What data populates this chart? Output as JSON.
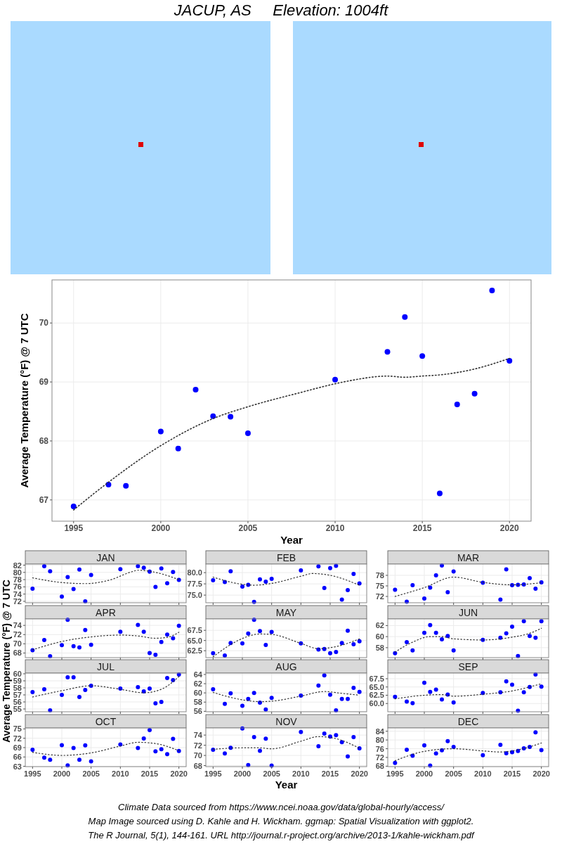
{
  "chart_data": [
    {
      "type": "scatter",
      "title": "JACUP, AS     Elevation: 1004ft",
      "xlabel": "Year",
      "ylabel": "Average Temperature (°F) @ 7 UTC",
      "x": [
        1995,
        1997,
        1998,
        2000,
        2001,
        2002,
        2003,
        2004,
        2005,
        2010,
        2013,
        2014,
        2015,
        2016,
        2017,
        2018,
        2019,
        2020
      ],
      "xlim": [
        1993.76,
        2021.24
      ],
      "xticks": [
        1995,
        2000,
        2005,
        2010,
        2015,
        2020
      ],
      "ylim": [
        66.64,
        70.73
      ],
      "yticks": [
        67,
        68,
        69,
        70
      ],
      "grid": true,
      "annotations": [
        "Climate Data sourced from https://www.ncei.noaa.gov/data/global-hourly/access/",
        "Map Image sourced using D. Kahle and H. Wickham. ggmap: Spatial Visualization with ggplot2.",
        "The R Journal, 5(1), 144-161. URL http://journal.r-project.org/archive/2013-1/kahle-wickham.pdf"
      ],
      "series": [
        {
          "type": "scatter",
          "color": "#0000ff",
          "marker": "circle",
          "values": [
            66.89,
            67.26,
            67.24,
            68.16,
            67.87,
            68.87,
            68.42,
            68.41,
            68.13,
            69.04,
            69.51,
            70.1,
            69.44,
            67.11,
            68.62,
            68.8,
            70.55,
            69.36
          ]
        },
        {
          "type": "line",
          "color": "#333333",
          "line_style": "dotted",
          "x": [
            1995,
            1997,
            2000,
            2003,
            2005,
            2008,
            2010,
            2011,
            2013,
            2014,
            2015,
            2016,
            2018,
            2020
          ],
          "values": [
            66.83,
            67.3,
            67.92,
            68.38,
            68.58,
            68.82,
            68.97,
            69.03,
            69.1,
            69.08,
            69.1,
            69.12,
            69.22,
            69.4
          ]
        }
      ]
    },
    {
      "type": "scatter",
      "title": "JAN",
      "ylabel": "Average Temperature (°F) @ 7 UTC",
      "x": [
        1995,
        1997,
        1998,
        2000,
        2001,
        2002,
        2003,
        2004,
        2005,
        2010,
        2013,
        2014,
        2015,
        2016,
        2017,
        2018,
        2019,
        2020
      ],
      "xlim": [
        1993.76,
        2021.24
      ],
      "xticks": [
        1995,
        2000,
        2005,
        2010,
        2015,
        2020
      ],
      "ylim": [
        71.6,
        82.3
      ],
      "yticks": [
        72,
        74,
        76,
        78,
        80,
        82
      ],
      "grid": true,
      "tick_labels": "y",
      "series": [
        {
          "type": "scatter",
          "color": "#0000ff",
          "marker": "circle",
          "values": [
            75.5,
            81.7,
            80.3,
            73.3,
            78.7,
            75.4,
            80.8,
            72,
            79.3,
            80.9,
            81.7,
            81.3,
            80.2,
            76,
            81.1,
            77,
            80.1,
            77.9
          ]
        },
        {
          "type": "line",
          "color": "#333333",
          "line_style": "dotted",
          "x": [
            1995,
            2000,
            2004,
            2008,
            2012,
            2013,
            2016,
            2020
          ],
          "values": [
            78.5,
            77.2,
            76.9,
            77.8,
            80.2,
            80.6,
            80,
            78
          ]
        }
      ]
    },
    {
      "type": "scatter",
      "title": "FEB",
      "x": [
        1995,
        1997,
        1998,
        2000,
        2001,
        2002,
        2003,
        2004,
        2005,
        2010,
        2013,
        2014,
        2015,
        2016,
        2017,
        2018,
        2019,
        2020
      ],
      "xlim": [
        1993.76,
        2021.24
      ],
      "xticks": [
        1995,
        2000,
        2005,
        2010,
        2015,
        2020
      ],
      "ylim": [
        73.3,
        81.9
      ],
      "yticks": [
        {
          "value": 75,
          "label": "75.0"
        },
        {
          "value": 77.5,
          "label": "77.5"
        },
        {
          "value": 80,
          "label": "80.0"
        }
      ],
      "grid": true,
      "tick_labels": "y",
      "series": [
        {
          "type": "scatter",
          "color": "#0000ff",
          "marker": "circle",
          "values": [
            78.3,
            77.9,
            80.3,
            76.9,
            77.3,
            73.5,
            78.5,
            78,
            78.6,
            80.5,
            81.4,
            76.6,
            81,
            81.5,
            74,
            76.1,
            79.7,
            77.6
          ]
        },
        {
          "type": "line",
          "color": "#333333",
          "line_style": "dotted",
          "x": [
            1995,
            2000,
            2002,
            2005,
            2010,
            2012,
            2015,
            2020
          ],
          "values": [
            79,
            77.4,
            77.2,
            77.6,
            79.2,
            79.8,
            79.4,
            77.2
          ]
        }
      ]
    },
    {
      "type": "scatter",
      "title": "MAR",
      "x": [
        1995,
        1997,
        1998,
        2000,
        2001,
        2002,
        2003,
        2004,
        2005,
        2010,
        2013,
        2014,
        2015,
        2016,
        2017,
        2018,
        2019,
        2020
      ],
      "xlim": [
        1993.76,
        2021.24
      ],
      "xticks": [
        1995,
        2000,
        2005,
        2010,
        2015,
        2020
      ],
      "ylim": [
        70.2,
        81.2
      ],
      "yticks": [
        72,
        75,
        78
      ],
      "grid": true,
      "tick_labels": "y",
      "series": [
        {
          "type": "scatter",
          "color": "#0000ff",
          "marker": "circle",
          "values": [
            73.9,
            70.5,
            75.2,
            71.4,
            74.5,
            78,
            80.8,
            73.2,
            79.1,
            75.9,
            71.1,
            79.7,
            75.2,
            75.3,
            75.4,
            77.2,
            74.2,
            76
          ]
        },
        {
          "type": "line",
          "color": "#333333",
          "line_style": "dotted",
          "x": [
            1995,
            2000,
            2005,
            2010,
            2015,
            2020
          ],
          "values": [
            72,
            74.5,
            77.5,
            76,
            75.3,
            75.9
          ]
        }
      ]
    },
    {
      "type": "scatter",
      "title": "APR",
      "x": [
        1995,
        1997,
        1998,
        2000,
        2001,
        2002,
        2003,
        2004,
        2005,
        2010,
        2013,
        2014,
        2015,
        2016,
        2017,
        2018,
        2019,
        2020
      ],
      "xlim": [
        1993.76,
        2021.24
      ],
      "xticks": [
        1995,
        2000,
        2005,
        2010,
        2015,
        2020
      ],
      "ylim": [
        67,
        75.4
      ],
      "yticks": [
        68,
        70,
        72,
        74
      ],
      "grid": true,
      "tick_labels": "y",
      "series": [
        {
          "type": "scatter",
          "color": "#0000ff",
          "marker": "circle",
          "values": [
            68.6,
            70.8,
            67.3,
            69.7,
            75.2,
            69.5,
            69.2,
            73,
            69.8,
            72.6,
            74.1,
            72.6,
            68,
            67.6,
            70.4,
            72,
            71.2,
            73.9
          ]
        },
        {
          "type": "line",
          "color": "#333333",
          "line_style": "dotted",
          "x": [
            1995,
            2000,
            2005,
            2010,
            2013,
            2016,
            2018,
            2020
          ],
          "values": [
            68.7,
            70.5,
            71.5,
            71.9,
            71.7,
            71.2,
            71.4,
            72.5
          ]
        }
      ]
    },
    {
      "type": "scatter",
      "title": "MAY",
      "x": [
        1995,
        1997,
        1998,
        2000,
        2001,
        2002,
        2003,
        2004,
        2005,
        2010,
        2013,
        2014,
        2015,
        2016,
        2017,
        2018,
        2019,
        2020
      ],
      "xlim": [
        1993.76,
        2021.24
      ],
      "xticks": [
        1995,
        2000,
        2005,
        2010,
        2015,
        2020
      ],
      "ylim": [
        60.8,
        70.3
      ],
      "yticks": [
        62.5,
        {
          "value": 65,
          "label": "65.0"
        },
        67.5
      ],
      "grid": true,
      "tick_labels": "y",
      "series": [
        {
          "type": "scatter",
          "color": "#0000ff",
          "marker": "circle",
          "values": [
            61.9,
            61.3,
            64.4,
            64.3,
            66.7,
            70.1,
            67.3,
            63.9,
            67.1,
            64.3,
            62.8,
            62.9,
            61.9,
            62.2,
            64.4,
            67.4,
            64.1,
            64.8
          ]
        },
        {
          "type": "line",
          "color": "#333333",
          "line_style": "dotted",
          "x": [
            1995,
            1998,
            2000,
            2003,
            2005,
            2010,
            2013,
            2016,
            2020
          ],
          "values": [
            61,
            64,
            65.5,
            66.6,
            66.5,
            64.3,
            63,
            63.5,
            65.4
          ]
        }
      ]
    },
    {
      "type": "scatter",
      "title": "JUN",
      "x": [
        1995,
        1997,
        1998,
        2000,
        2001,
        2002,
        2003,
        2004,
        2005,
        2010,
        2013,
        2014,
        2015,
        2016,
        2017,
        2018,
        2019,
        2020
      ],
      "xlim": [
        1993.76,
        2021.24
      ],
      "xticks": [
        1995,
        2000,
        2005,
        2010,
        2015,
        2020
      ],
      "ylim": [
        56.2,
        63.2
      ],
      "yticks": [
        58,
        60,
        62
      ],
      "grid": true,
      "tick_labels": "y",
      "series": [
        {
          "type": "scatter",
          "color": "#0000ff",
          "marker": "circle",
          "values": [
            57,
            59,
            57.5,
            60.7,
            62.1,
            60.7,
            59.5,
            60.1,
            57.5,
            59.4,
            59.8,
            60.6,
            61.8,
            56.5,
            62.8,
            60.1,
            59.8,
            62.8
          ]
        },
        {
          "type": "line",
          "color": "#333333",
          "line_style": "dotted",
          "x": [
            1995,
            1998,
            2001,
            2003,
            2005,
            2010,
            2015,
            2018,
            2020
          ],
          "values": [
            57.2,
            59,
            60,
            60,
            59.6,
            59.4,
            59.9,
            60.6,
            61.5
          ]
        }
      ]
    },
    {
      "type": "scatter",
      "title": "JUL",
      "x": [
        1995,
        1997,
        1998,
        2000,
        2001,
        2002,
        2003,
        2004,
        2005,
        2010,
        2013,
        2014,
        2015,
        2016,
        2017,
        2018,
        2019,
        2020
      ],
      "xlim": [
        1993.76,
        2021.24
      ],
      "xticks": [
        1995,
        2000,
        2005,
        2010,
        2015,
        2020
      ],
      "ylim": [
        54.6,
        60.1
      ],
      "yticks": [
        55,
        56,
        57,
        58,
        59,
        60
      ],
      "grid": true,
      "tick_labels": "y",
      "series": [
        {
          "type": "scatter",
          "color": "#0000ff",
          "marker": "circle",
          "values": [
            57.4,
            57.8,
            54.8,
            57,
            59.5,
            59.5,
            56.7,
            57.7,
            58.3,
            57.9,
            58.1,
            57.5,
            57.9,
            55.8,
            56,
            59.4,
            59.1,
            59.9
          ]
        },
        {
          "type": "line",
          "color": "#333333",
          "line_style": "dotted",
          "x": [
            1995,
            2000,
            2005,
            2010,
            2014,
            2017,
            2020
          ],
          "values": [
            56.7,
            57.6,
            58.3,
            57.8,
            57.3,
            57.8,
            59.6
          ]
        }
      ]
    },
    {
      "type": "scatter",
      "title": "AUG",
      "x": [
        1995,
        1997,
        1998,
        2000,
        2001,
        2002,
        2003,
        2004,
        2005,
        2010,
        2013,
        2014,
        2015,
        2016,
        2017,
        2018,
        2019,
        2020
      ],
      "xlim": [
        1993.76,
        2021.24
      ],
      "xticks": [
        1995,
        2000,
        2005,
        2010,
        2015,
        2020
      ],
      "ylim": [
        55.9,
        64.3
      ],
      "yticks": [
        56,
        58,
        60,
        62,
        64
      ],
      "grid": true,
      "tick_labels": "y",
      "series": [
        {
          "type": "scatter",
          "color": "#0000ff",
          "marker": "circle",
          "values": [
            60.8,
            57.6,
            59.9,
            57.2,
            58.7,
            60,
            57.9,
            56.4,
            58.9,
            59.4,
            61.6,
            63.8,
            59.6,
            56.2,
            58.7,
            58.7,
            61.1,
            60.2
          ]
        },
        {
          "type": "line",
          "color": "#333333",
          "line_style": "dotted",
          "x": [
            1995,
            2000,
            2003,
            2005,
            2010,
            2014,
            2017,
            2020
          ],
          "values": [
            60.1,
            58.5,
            58.1,
            58.2,
            59.3,
            60.3,
            59.9,
            59.5
          ]
        }
      ]
    },
    {
      "type": "scatter",
      "title": "SEP",
      "x": [
        1995,
        1997,
        1998,
        2000,
        2001,
        2002,
        2003,
        2004,
        2005,
        2010,
        2013,
        2014,
        2015,
        2016,
        2017,
        2018,
        2019,
        2020
      ],
      "xlim": [
        1993.76,
        2021.24
      ],
      "xticks": [
        1995,
        2000,
        2005,
        2010,
        2015,
        2020
      ],
      "ylim": [
        57.5,
        69.2
      ],
      "yticks": [
        {
          "value": 60,
          "label": "60.0"
        },
        62.5,
        {
          "value": 65,
          "label": "65.0"
        },
        67.5
      ],
      "grid": true,
      "tick_labels": "y",
      "series": [
        {
          "type": "scatter",
          "color": "#0000ff",
          "marker": "circle",
          "values": [
            62,
            60.6,
            60.1,
            66.3,
            63.5,
            64.2,
            61.2,
            62.7,
            60.3,
            63.2,
            63.4,
            66.7,
            65.7,
            57.8,
            63.4,
            65,
            68.8,
            65.1
          ]
        },
        {
          "type": "line",
          "color": "#333333",
          "line_style": "dotted",
          "x": [
            1995,
            2000,
            2003,
            2005,
            2010,
            2015,
            2020
          ],
          "values": [
            61.4,
            62.5,
            62.7,
            62.2,
            62.8,
            63.8,
            66
          ]
        }
      ]
    },
    {
      "type": "scatter",
      "title": "OCT",
      "x": [
        1995,
        1997,
        1998,
        2000,
        2001,
        2002,
        2003,
        2004,
        2005,
        2010,
        2013,
        2014,
        2015,
        2016,
        2017,
        2018,
        2019,
        2020
      ],
      "xlim": [
        1993.76,
        2021.24
      ],
      "xticks": [
        1995,
        2000,
        2005,
        2010,
        2015,
        2020
      ],
      "ylim": [
        62.9,
        75.3
      ],
      "yticks": [
        63,
        66,
        69,
        72,
        75
      ],
      "grid": true,
      "series": [
        {
          "type": "scatter",
          "color": "#0000ff",
          "marker": "circle",
          "values": [
            68.3,
            65.8,
            65.1,
            69.8,
            63.3,
            68.9,
            65.1,
            69.7,
            64.6,
            70,
            68.9,
            71.9,
            74.6,
            67.8,
            68.5,
            66.9,
            71.8,
            67.9
          ]
        },
        {
          "type": "line",
          "color": "#333333",
          "line_style": "dotted",
          "x": [
            1995,
            2000,
            2005,
            2010,
            2013,
            2016,
            2020
          ],
          "values": [
            67.5,
            66.5,
            67.3,
            69.5,
            70.7,
            70.3,
            68
          ]
        }
      ]
    },
    {
      "type": "scatter",
      "title": "NOV",
      "xlabel": "Year",
      "x": [
        1995,
        1997,
        1998,
        2000,
        2001,
        2002,
        2003,
        2004,
        2005,
        2010,
        2013,
        2014,
        2015,
        2016,
        2017,
        2018,
        2019,
        2020
      ],
      "xlim": [
        1993.76,
        2021.24
      ],
      "xticks": [
        1995,
        2000,
        2005,
        2010,
        2015,
        2020
      ],
      "ylim": [
        67.8,
        75.4
      ],
      "yticks": [
        68,
        70,
        72,
        74
      ],
      "grid": true,
      "series": [
        {
          "type": "scatter",
          "color": "#0000ff",
          "marker": "circle",
          "values": [
            71.1,
            70.4,
            71.5,
            75.3,
            68.1,
            73.6,
            70.9,
            73.3,
            68,
            74.6,
            71.8,
            74.3,
            73.7,
            74,
            72.6,
            69.8,
            73.6,
            71.4
          ]
        },
        {
          "type": "line",
          "color": "#333333",
          "line_style": "dotted",
          "x": [
            1995,
            2000,
            2003,
            2005,
            2010,
            2013,
            2016,
            2020
          ],
          "values": [
            71.2,
            71.5,
            71.5,
            71.3,
            72.8,
            73.7,
            73.3,
            71.4
          ]
        }
      ]
    },
    {
      "type": "scatter",
      "title": "DEC",
      "x": [
        1995,
        1997,
        1998,
        2000,
        2001,
        2002,
        2003,
        2004,
        2005,
        2010,
        2013,
        2014,
        2015,
        2016,
        2017,
        2018,
        2019,
        2020
      ],
      "xlim": [
        1993.76,
        2021.24
      ],
      "xticks": [
        1995,
        2000,
        2005,
        2010,
        2015,
        2020
      ],
      "ylim": [
        67.8,
        85.5
      ],
      "yticks": [
        68,
        72,
        76,
        80,
        84
      ],
      "grid": true,
      "series": [
        {
          "type": "scatter",
          "color": "#0000ff",
          "marker": "circle",
          "values": [
            69.5,
            75.5,
            72.8,
            77.5,
            68.3,
            73.8,
            75.3,
            79.5,
            76.8,
            73,
            77.8,
            73.9,
            74.4,
            75,
            76.2,
            76.8,
            83.5,
            75.4
          ]
        },
        {
          "type": "line",
          "color": "#333333",
          "line_style": "dotted",
          "x": [
            1995,
            2000,
            2005,
            2010,
            2013,
            2016,
            2020
          ],
          "values": [
            70.5,
            74.8,
            76,
            75,
            74.5,
            75.5,
            78.6
          ]
        }
      ]
    }
  ]
}
